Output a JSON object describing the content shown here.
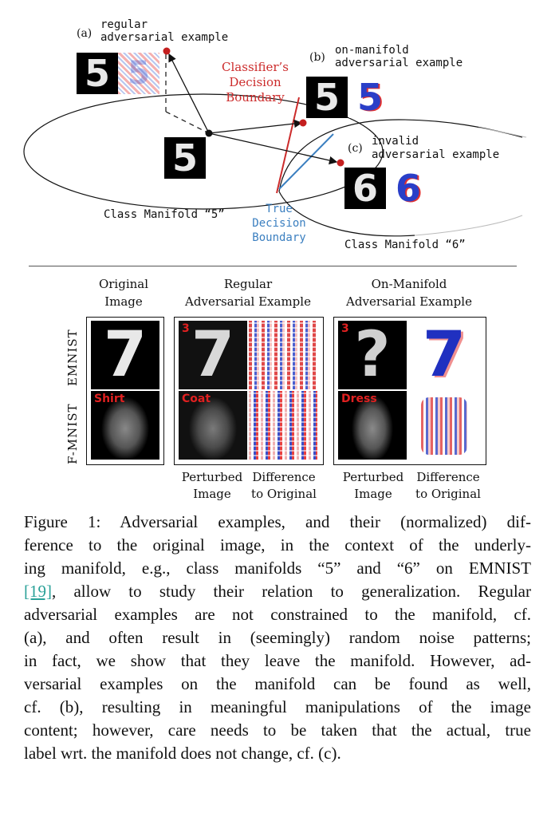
{
  "diagram": {
    "label_a_marker": "(a)",
    "label_a": [
      "regular",
      "adversarial example"
    ],
    "label_b_marker": "(b)",
    "label_b": [
      "on-manifold",
      "adversarial example"
    ],
    "label_c_marker": "(c)",
    "label_c": [
      "invalid",
      "adversarial example"
    ],
    "classifier_boundary": [
      "Classifier’s",
      "Decision",
      "Boundary"
    ],
    "true_boundary": [
      "True",
      "Decision",
      "Boundary"
    ],
    "manifold_5": "Class Manifold “5”",
    "manifold_6": "Class Manifold “6”",
    "digit_5": "5",
    "digit_6": "6"
  },
  "grid": {
    "col_original": [
      "Original",
      "Image"
    ],
    "col_regular": [
      "Regular",
      "Adversarial Example"
    ],
    "col_onmanifold": [
      "On-Manifold",
      "Adversarial Example"
    ],
    "row_emnist": "EMNIST",
    "row_fmnist": "F-MNIST",
    "emnist_digit": "7",
    "emnist_pred_regular": "3",
    "emnist_pred_onmanifold": "3",
    "fmnist_label_original": "Shirt",
    "fmnist_pred_regular": "Coat",
    "fmnist_pred_onmanifold": "Dress",
    "sub_perturbed": [
      "Perturbed",
      "Image"
    ],
    "sub_difference": [
      "Difference",
      "to Original"
    ]
  },
  "caption": {
    "l1": "Figure 1: Adversarial examples, and their (normalized) dif-",
    "l2": "ference to the original image, in the context of the underly-",
    "l3": "ing manifold, e.g., class manifolds “5” and “6” on EMNIST",
    "l4_cite": "[19]",
    "l4_rest": ", allow to study their relation to generalization. Regular",
    "l5": "adversarial examples are not constrained to the manifold, cf.",
    "l6": "(a), and often result in (seemingly) random noise patterns;",
    "l7": "in fact, we show that they leave the manifold. However, ad-",
    "l8": "versarial examples on the manifold can be found as well,",
    "l9": "cf. (b), resulting in meaningful manipulations of the image",
    "l10": "content; however, care needs to be taken that the actual, true",
    "l11": "label wrt. the manifold does not change, cf. (c)."
  },
  "colors": {
    "classifier": "#cc2b2b",
    "true_boundary": "#3b7fc0",
    "point": "#c41f1f"
  }
}
